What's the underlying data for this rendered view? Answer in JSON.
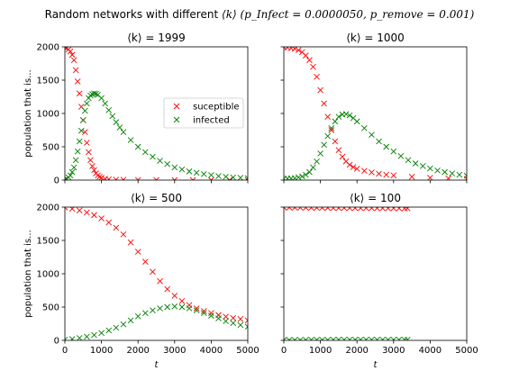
{
  "figure": {
    "suptitle_prefix": "Random networks with different",
    "suptitle_k": "⟨k⟩",
    "suptitle_params": "(p_Infect = 0.0000050, p_remove = 0.001)"
  },
  "colors": {
    "susceptible": "#ff0000",
    "infected": "#008000",
    "axes": "#000000",
    "background": "#ffffff"
  },
  "chart_data": [
    {
      "type": "scatter",
      "title": "⟨k⟩ = 1999",
      "xlabel": "",
      "ylabel": "population that is...",
      "xlim": [
        0,
        5000
      ],
      "ylim": [
        0,
        2000
      ],
      "xticks": [
        0,
        1000,
        2000,
        3000,
        4000,
        5000
      ],
      "yticks": [
        0,
        500,
        1000,
        1500,
        2000
      ],
      "show_xticklabels": false,
      "show_yticklabels": true,
      "legend": {
        "placement": "center-right",
        "entries": [
          "suceptible",
          "infected"
        ]
      },
      "marker": "x",
      "series": [
        {
          "name": "suceptible",
          "color": "#ff0000",
          "points": [
            [
              0,
              1995
            ],
            [
              50,
              1980
            ],
            [
              100,
              1960
            ],
            [
              150,
              1930
            ],
            [
              200,
              1880
            ],
            [
              250,
              1800
            ],
            [
              300,
              1650
            ],
            [
              350,
              1480
            ],
            [
              400,
              1300
            ],
            [
              450,
              1100
            ],
            [
              500,
              900
            ],
            [
              550,
              720
            ],
            [
              600,
              560
            ],
            [
              650,
              420
            ],
            [
              700,
              300
            ],
            [
              750,
              210
            ],
            [
              800,
              150
            ],
            [
              850,
              100
            ],
            [
              900,
              70
            ],
            [
              950,
              50
            ],
            [
              1000,
              35
            ],
            [
              1100,
              20
            ],
            [
              1200,
              12
            ],
            [
              1400,
              6
            ],
            [
              1600,
              4
            ],
            [
              2000,
              2
            ],
            [
              2500,
              1
            ],
            [
              3000,
              0
            ],
            [
              3500,
              0
            ],
            [
              4000,
              0
            ],
            [
              4500,
              0
            ],
            [
              5000,
              0
            ]
          ]
        },
        {
          "name": "infected",
          "color": "#008000",
          "points": [
            [
              0,
              5
            ],
            [
              50,
              20
            ],
            [
              100,
              40
            ],
            [
              150,
              70
            ],
            [
              200,
              120
            ],
            [
              250,
              190
            ],
            [
              300,
              300
            ],
            [
              350,
              430
            ],
            [
              400,
              580
            ],
            [
              450,
              740
            ],
            [
              500,
              900
            ],
            [
              550,
              1040
            ],
            [
              600,
              1150
            ],
            [
              650,
              1230
            ],
            [
              700,
              1270
            ],
            [
              750,
              1290
            ],
            [
              800,
              1300
            ],
            [
              850,
              1295
            ],
            [
              900,
              1280
            ],
            [
              1000,
              1230
            ],
            [
              1100,
              1150
            ],
            [
              1200,
              1050
            ],
            [
              1300,
              960
            ],
            [
              1400,
              870
            ],
            [
              1500,
              790
            ],
            [
              1600,
              720
            ],
            [
              1800,
              600
            ],
            [
              2000,
              500
            ],
            [
              2200,
              420
            ],
            [
              2400,
              350
            ],
            [
              2600,
              290
            ],
            [
              2800,
              240
            ],
            [
              3000,
              190
            ],
            [
              3200,
              160
            ],
            [
              3400,
              130
            ],
            [
              3600,
              110
            ],
            [
              3800,
              90
            ],
            [
              4000,
              75
            ],
            [
              4200,
              60
            ],
            [
              4400,
              50
            ],
            [
              4600,
              40
            ],
            [
              4800,
              35
            ],
            [
              5000,
              30
            ]
          ]
        }
      ]
    },
    {
      "type": "scatter",
      "title": "⟨k⟩ = 1000",
      "xlabel": "",
      "ylabel": "",
      "xlim": [
        0,
        5000
      ],
      "ylim": [
        0,
        2000
      ],
      "xticks": [
        0,
        1000,
        2000,
        3000,
        4000,
        5000
      ],
      "yticks": [
        0,
        500,
        1000,
        1500,
        2000
      ],
      "show_xticklabels": false,
      "show_yticklabels": false,
      "marker": "x",
      "series": [
        {
          "name": "suceptible",
          "color": "#ff0000",
          "points": [
            [
              0,
              1995
            ],
            [
              100,
              1990
            ],
            [
              200,
              1980
            ],
            [
              300,
              1970
            ],
            [
              400,
              1950
            ],
            [
              500,
              1920
            ],
            [
              600,
              1870
            ],
            [
              700,
              1800
            ],
            [
              800,
              1700
            ],
            [
              900,
              1550
            ],
            [
              1000,
              1350
            ],
            [
              1100,
              1150
            ],
            [
              1200,
              950
            ],
            [
              1300,
              750
            ],
            [
              1400,
              580
            ],
            [
              1500,
              450
            ],
            [
              1600,
              350
            ],
            [
              1700,
              280
            ],
            [
              1800,
              230
            ],
            [
              1900,
              195
            ],
            [
              2000,
              170
            ],
            [
              2200,
              140
            ],
            [
              2400,
              115
            ],
            [
              2600,
              95
            ],
            [
              2800,
              80
            ],
            [
              3000,
              70
            ],
            [
              3500,
              50
            ],
            [
              4000,
              35
            ],
            [
              4500,
              25
            ],
            [
              5000,
              20
            ]
          ]
        },
        {
          "name": "infected",
          "color": "#008000",
          "points": [
            [
              0,
              20
            ],
            [
              100,
              22
            ],
            [
              200,
              25
            ],
            [
              300,
              30
            ],
            [
              400,
              40
            ],
            [
              500,
              55
            ],
            [
              600,
              80
            ],
            [
              700,
              120
            ],
            [
              800,
              190
            ],
            [
              900,
              280
            ],
            [
              1000,
              400
            ],
            [
              1100,
              530
            ],
            [
              1200,
              660
            ],
            [
              1300,
              780
            ],
            [
              1400,
              880
            ],
            [
              1500,
              950
            ],
            [
              1600,
              985
            ],
            [
              1700,
              990
            ],
            [
              1800,
              970
            ],
            [
              1900,
              930
            ],
            [
              2000,
              880
            ],
            [
              2200,
              780
            ],
            [
              2400,
              680
            ],
            [
              2600,
              580
            ],
            [
              2800,
              500
            ],
            [
              3000,
              430
            ],
            [
              3200,
              360
            ],
            [
              3400,
              300
            ],
            [
              3600,
              250
            ],
            [
              3800,
              210
            ],
            [
              4000,
              175
            ],
            [
              4200,
              145
            ],
            [
              4400,
              120
            ],
            [
              4600,
              100
            ],
            [
              4800,
              80
            ],
            [
              5000,
              65
            ]
          ]
        }
      ]
    },
    {
      "type": "scatter",
      "title": "⟨k⟩ = 500",
      "xlabel": "t",
      "ylabel": "population that is...",
      "xlim": [
        0,
        5000
      ],
      "ylim": [
        0,
        2000
      ],
      "xticks": [
        0,
        1000,
        2000,
        3000,
        4000,
        5000
      ],
      "yticks": [
        0,
        500,
        1000,
        1500,
        2000
      ],
      "show_xticklabels": true,
      "show_yticklabels": true,
      "marker": "x",
      "series": [
        {
          "name": "suceptible",
          "color": "#ff0000",
          "points": [
            [
              0,
              1995
            ],
            [
              200,
              1975
            ],
            [
              400,
              1950
            ],
            [
              600,
              1920
            ],
            [
              800,
              1880
            ],
            [
              1000,
              1830
            ],
            [
              1200,
              1770
            ],
            [
              1400,
              1690
            ],
            [
              1600,
              1590
            ],
            [
              1800,
              1470
            ],
            [
              2000,
              1330
            ],
            [
              2200,
              1180
            ],
            [
              2400,
              1030
            ],
            [
              2600,
              890
            ],
            [
              2800,
              770
            ],
            [
              3000,
              670
            ],
            [
              3200,
              590
            ],
            [
              3400,
              530
            ],
            [
              3600,
              480
            ],
            [
              3800,
              440
            ],
            [
              4000,
              410
            ],
            [
              4200,
              380
            ],
            [
              4400,
              355
            ],
            [
              4600,
              335
            ],
            [
              4800,
              320
            ],
            [
              5000,
              300
            ]
          ]
        },
        {
          "name": "infected",
          "color": "#008000",
          "points": [
            [
              0,
              10
            ],
            [
              200,
              20
            ],
            [
              400,
              35
            ],
            [
              600,
              55
            ],
            [
              800,
              80
            ],
            [
              1000,
              110
            ],
            [
              1200,
              150
            ],
            [
              1400,
              190
            ],
            [
              1600,
              240
            ],
            [
              1800,
              300
            ],
            [
              2000,
              360
            ],
            [
              2200,
              410
            ],
            [
              2400,
              450
            ],
            [
              2600,
              480
            ],
            [
              2800,
              500
            ],
            [
              3000,
              510
            ],
            [
              3200,
              500
            ],
            [
              3400,
              480
            ],
            [
              3600,
              450
            ],
            [
              3800,
              410
            ],
            [
              4000,
              370
            ],
            [
              4200,
              330
            ],
            [
              4400,
              290
            ],
            [
              4600,
              260
            ],
            [
              4800,
              230
            ],
            [
              5000,
              205
            ]
          ]
        }
      ]
    },
    {
      "type": "scatter",
      "title": "⟨k⟩ = 100",
      "xlabel": "t",
      "ylabel": "",
      "xlim": [
        0,
        5000
      ],
      "ylim": [
        0,
        2000
      ],
      "xticks": [
        0,
        1000,
        2000,
        3000,
        4000,
        5000
      ],
      "yticks": [
        0,
        500,
        1000,
        1500,
        2000
      ],
      "show_xticklabels": true,
      "show_yticklabels": false,
      "marker": "x",
      "series": [
        {
          "name": "suceptible",
          "color": "#ff0000",
          "points": [
            [
              0,
              1995
            ],
            [
              150,
              1994
            ],
            [
              300,
              1993
            ],
            [
              450,
              1992
            ],
            [
              600,
              1992
            ],
            [
              750,
              1991
            ],
            [
              900,
              1990
            ],
            [
              1050,
              1990
            ],
            [
              1200,
              1989
            ],
            [
              1350,
              1988
            ],
            [
              1500,
              1988
            ],
            [
              1650,
              1987
            ],
            [
              1800,
              1987
            ],
            [
              1950,
              1986
            ],
            [
              2100,
              1986
            ],
            [
              2250,
              1985
            ],
            [
              2400,
              1985
            ],
            [
              2550,
              1984
            ],
            [
              2700,
              1984
            ],
            [
              2850,
              1983
            ],
            [
              3000,
              1983
            ],
            [
              3150,
              1982
            ],
            [
              3300,
              1982
            ],
            [
              3380,
              1982
            ]
          ]
        },
        {
          "name": "infected",
          "color": "#008000",
          "points": [
            [
              0,
              5
            ],
            [
              150,
              5
            ],
            [
              300,
              6
            ],
            [
              450,
              6
            ],
            [
              600,
              7
            ],
            [
              750,
              7
            ],
            [
              900,
              8
            ],
            [
              1050,
              8
            ],
            [
              1200,
              8
            ],
            [
              1350,
              9
            ],
            [
              1500,
              9
            ],
            [
              1650,
              9
            ],
            [
              1800,
              10
            ],
            [
              1950,
              10
            ],
            [
              2100,
              10
            ],
            [
              2250,
              10
            ],
            [
              2400,
              10
            ],
            [
              2550,
              10
            ],
            [
              2700,
              10
            ],
            [
              2850,
              10
            ],
            [
              3000,
              10
            ],
            [
              3150,
              10
            ],
            [
              3300,
              10
            ],
            [
              3380,
              10
            ]
          ]
        }
      ]
    }
  ]
}
